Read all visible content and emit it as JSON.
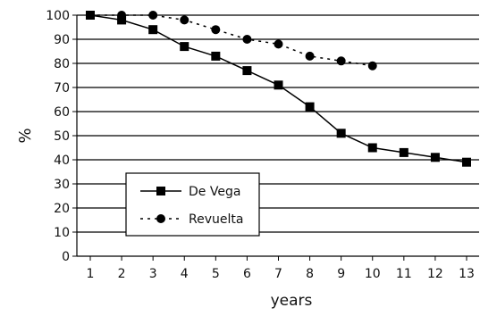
{
  "chart_data": {
    "type": "line",
    "xlabel": "years",
    "ylabel": "%",
    "x": [
      1,
      2,
      3,
      4,
      5,
      6,
      7,
      8,
      9,
      10,
      11,
      12,
      13
    ],
    "xlim": [
      1,
      13
    ],
    "ylim": [
      0,
      100
    ],
    "yticks": [
      0,
      10,
      20,
      30,
      40,
      50,
      60,
      70,
      80,
      90,
      100
    ],
    "grid": "horizontal",
    "legend_position": "lower-left",
    "series": [
      {
        "name": "De Vega",
        "marker": "square",
        "line_style": "solid",
        "color": "#000000",
        "x": [
          1,
          2,
          3,
          4,
          5,
          6,
          7,
          8,
          9,
          10,
          11,
          12,
          13
        ],
        "values": [
          100,
          98,
          94,
          87,
          83,
          77,
          71,
          62,
          51,
          45,
          43,
          41,
          39
        ]
      },
      {
        "name": "Revuelta",
        "marker": "circle",
        "line_style": "dotted",
        "color": "#000000",
        "x": [
          1,
          2,
          3,
          4,
          5,
          6,
          7,
          8,
          9,
          10
        ],
        "values": [
          100,
          100,
          100,
          98,
          94,
          90,
          88,
          83,
          81,
          79
        ]
      }
    ]
  }
}
